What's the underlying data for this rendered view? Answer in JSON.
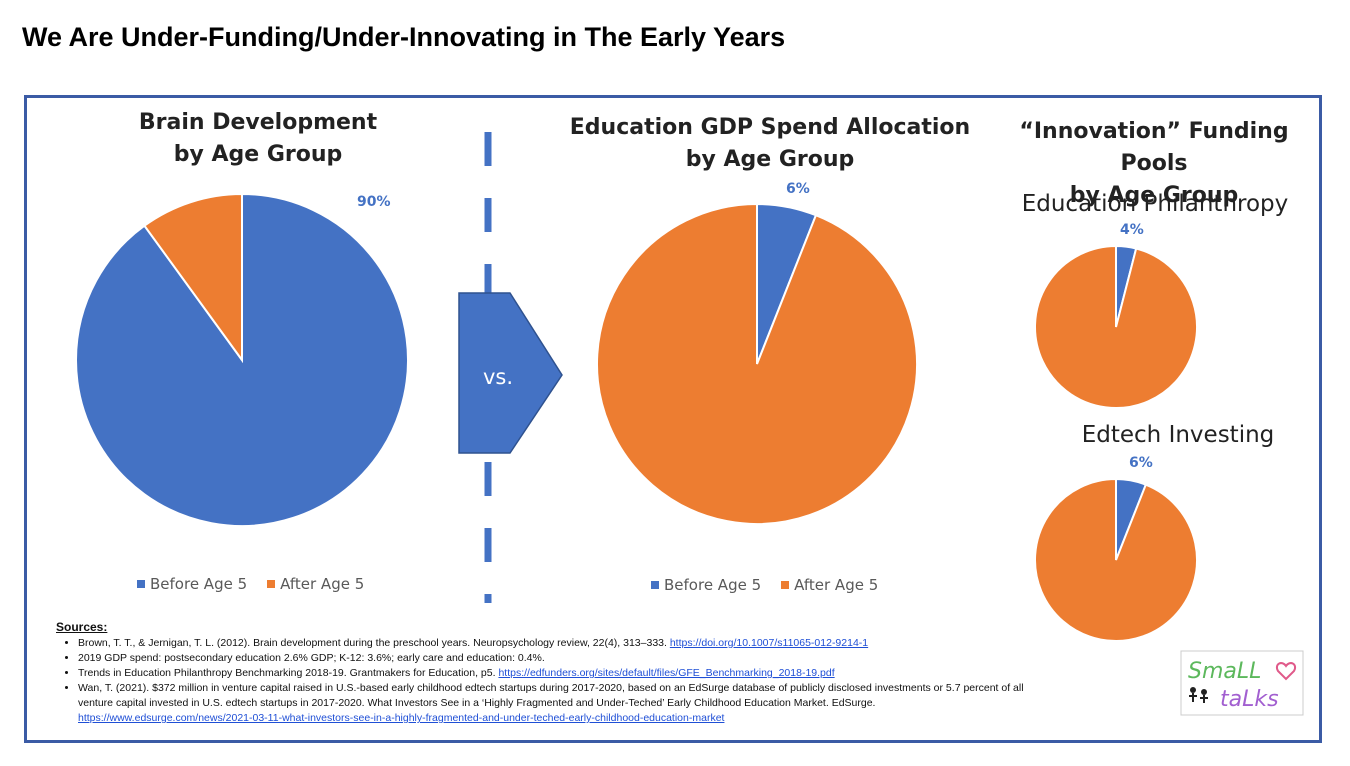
{
  "page_title": "We Are Under-Funding/Under-Innovating in The Early Years",
  "vs_label": "vs.",
  "innovation_title": [
    "“Innovation” Funding Pools",
    "by Age Group"
  ],
  "legend": [
    "Before Age 5",
    "After Age 5"
  ],
  "colors": {
    "before": "#4472c4",
    "after": "#ed7d31",
    "frame": "#3b5ba5"
  },
  "chart_data": [
    {
      "type": "pie",
      "title": [
        "Brain Development",
        "by Age Group"
      ],
      "categories": [
        "Before Age 5",
        "After Age 5"
      ],
      "values": [
        90,
        10
      ],
      "data_labels": [
        "90%"
      ],
      "legend": "bottom"
    },
    {
      "type": "pie",
      "title": [
        "Education GDP Spend Allocation",
        "by Age Group"
      ],
      "categories": [
        "Before Age 5",
        "After Age 5"
      ],
      "values": [
        6,
        94
      ],
      "data_labels": [
        "6%"
      ],
      "legend": "bottom"
    },
    {
      "type": "pie",
      "title": "Education Philanthropy",
      "categories": [
        "Before Age 5",
        "After Age 5"
      ],
      "values": [
        4,
        96
      ],
      "data_labels": [
        "4%"
      ]
    },
    {
      "type": "pie",
      "title": "Edtech Investing",
      "categories": [
        "Before Age 5",
        "After Age 5"
      ],
      "values": [
        6,
        94
      ],
      "data_labels": [
        "6%"
      ]
    }
  ],
  "sources": {
    "heading": "Sources:",
    "items": [
      {
        "text": "Brown, T. T., & Jernigan, T. L. (2012). Brain development during the preschool years. Neuropsychology review, 22(4), 313–333. ",
        "link": "https://doi.org/10.1007/s11065-012-9214-1"
      },
      {
        "text": "2019 GDP spend: postsecondary education 2.6% GDP; K-12: 3.6%; early care and education: 0.4%.",
        "link": ""
      },
      {
        "text": "Trends in Education Philanthropy Benchmarking 2018-19. Grantmakers for Education, p5. ",
        "link": "https://edfunders.org/sites/default/files/GFE_Benchmarking_2018-19.pdf"
      },
      {
        "text": "Wan, T. (2021). $372 million in venture capital raised in U.S.-based early childhood edtech startups during 2017-2020, based on an EdSurge database of publicly disclosed investments or 5.7 percent of all venture capital invested in U.S. edtech startups in 2017-2020. What Investors See in a ‘Highly Fragmented and Under-Teched’ Early Childhood Education Market. EdSurge. ",
        "link": "https://www.edsurge.com/news/2021-03-11-what-investors-see-in-a-highly-fragmented-and-under-teched-early-childhood-education-market"
      }
    ]
  },
  "logo": {
    "line1": "SmaLL",
    "line2": "taLks"
  }
}
